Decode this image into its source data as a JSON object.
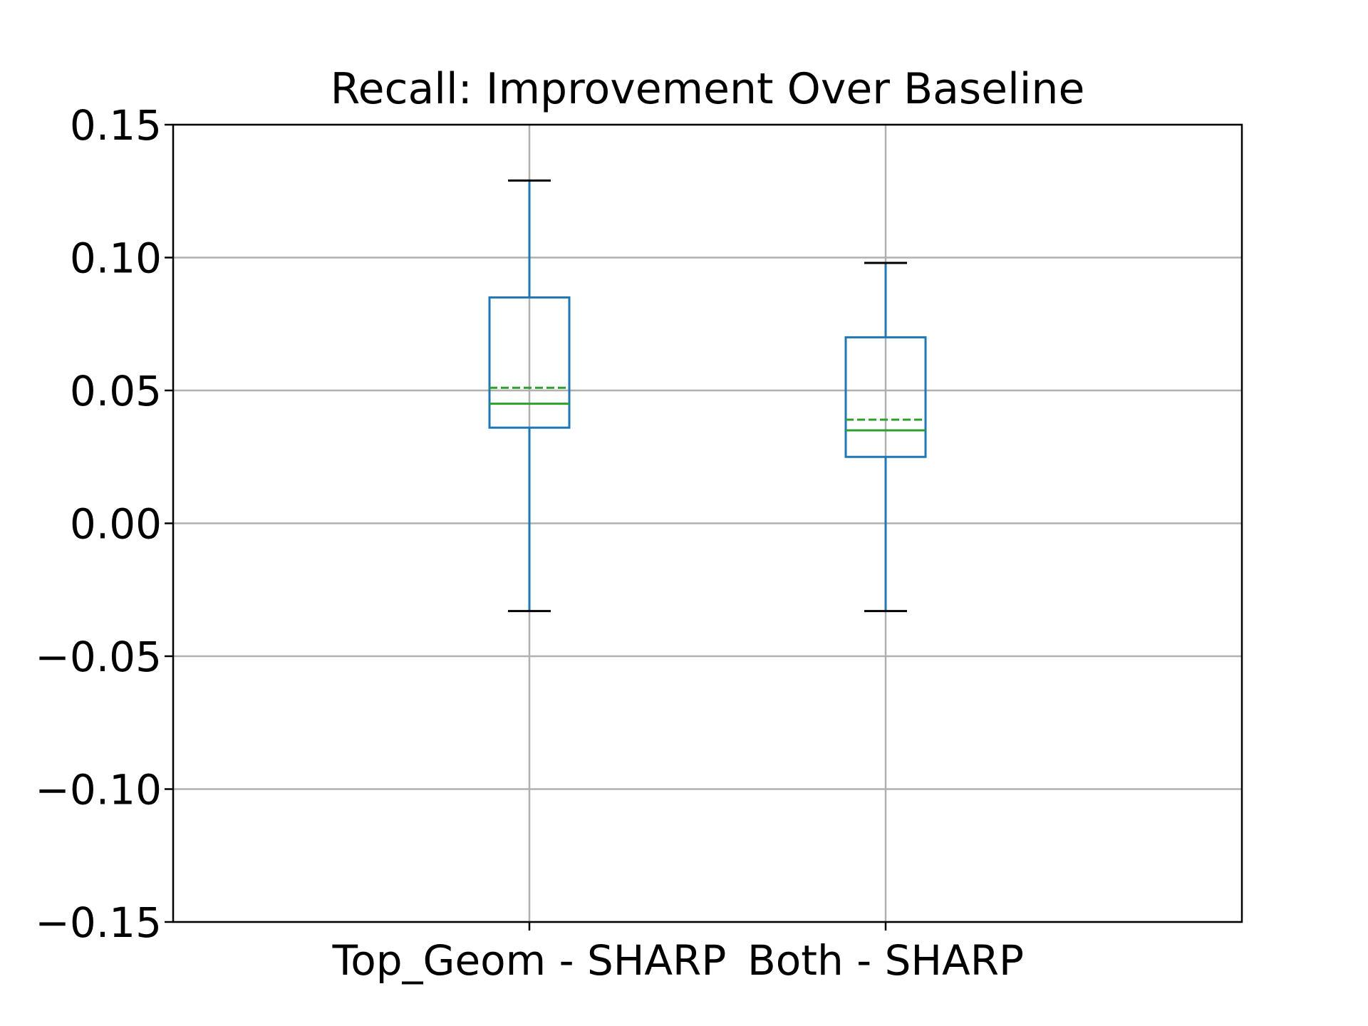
{
  "chart_data": {
    "type": "box",
    "title": "Recall: Improvement Over Baseline",
    "xlabel": "",
    "ylabel": "",
    "ylim": [
      -0.15,
      0.15
    ],
    "yticks": [
      "0.15",
      "0.10",
      "0.05",
      "0.00",
      "−0.05",
      "−0.10",
      "−0.15"
    ],
    "ytick_values": [
      0.15,
      0.1,
      0.05,
      0.0,
      -0.05,
      -0.1,
      -0.15
    ],
    "grid": true,
    "categories": [
      "Top_Geom - SHARP",
      "Both - SHARP"
    ],
    "boxes": [
      {
        "category": "Top_Geom - SHARP",
        "whisker_low": -0.033,
        "q1": 0.036,
        "median": 0.045,
        "mean": 0.051,
        "q3": 0.085,
        "whisker_high": 0.129
      },
      {
        "category": "Both - SHARP",
        "whisker_low": -0.033,
        "q1": 0.025,
        "median": 0.035,
        "mean": 0.039,
        "q3": 0.07,
        "whisker_high": 0.098
      }
    ],
    "colors": {
      "box": "#1f77b4",
      "median": "#2ca02c",
      "mean": "#2ca02c",
      "cap": "#000000",
      "grid": "#b0b0b0"
    }
  }
}
